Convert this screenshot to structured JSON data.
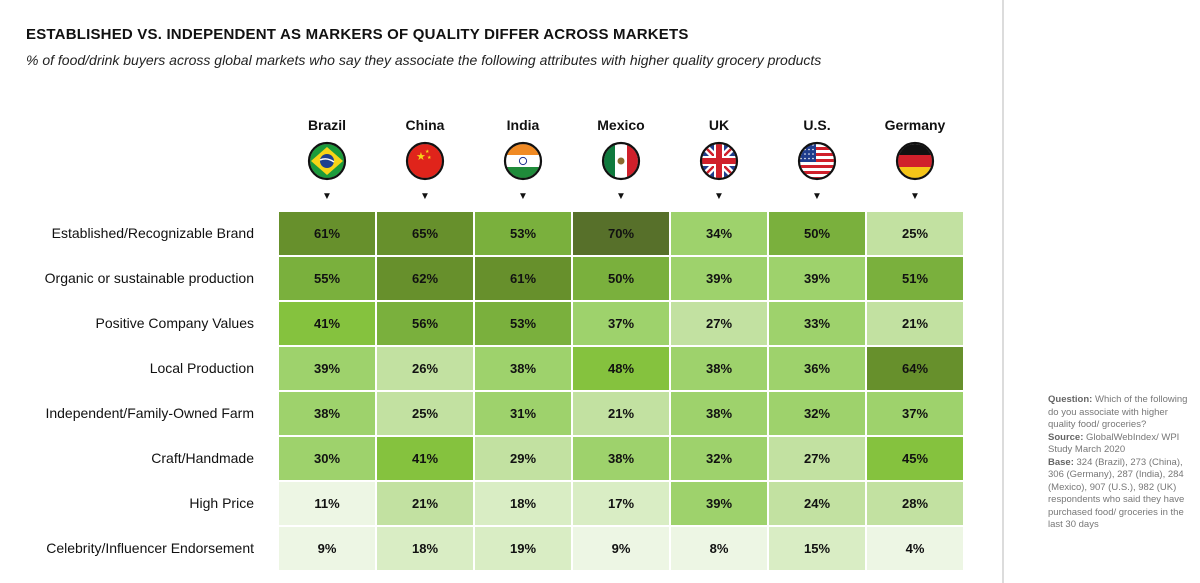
{
  "title": "ESTABLISHED VS. INDEPENDENT AS MARKERS OF QUALITY DIFFER ACROSS MARKETS",
  "subtitle": "% of food/drink buyers across global markets who say they associate the following attributes with higher quality grocery products",
  "chart_data": {
    "type": "heatmap",
    "title": "ESTABLISHED VS. INDEPENDENT AS MARKERS OF QUALITY DIFFER ACROSS MARKETS",
    "subtitle": "% of food/drink buyers across global markets who say they associate the following attributes with higher quality grocery products",
    "columns": [
      "Brazil",
      "China",
      "India",
      "Mexico",
      "UK",
      "U.S.",
      "Germany"
    ],
    "flag_icons": [
      "brazil-flag-icon",
      "china-flag-icon",
      "india-flag-icon",
      "mexico-flag-icon",
      "uk-flag-icon",
      "us-flag-icon",
      "germany-flag-icon"
    ],
    "rows": [
      "Established/Recognizable Brand",
      "Organic or sustainable production",
      "Positive Company Values",
      "Local Production",
      "Independent/Family-Owned Farm",
      "Craft/Handmade",
      "High Price",
      "Celebrity/Influencer Endorsement"
    ],
    "values": [
      [
        61,
        65,
        53,
        70,
        34,
        50,
        25
      ],
      [
        55,
        62,
        61,
        50,
        39,
        39,
        51
      ],
      [
        41,
        56,
        53,
        37,
        27,
        33,
        21
      ],
      [
        39,
        26,
        38,
        48,
        38,
        36,
        64
      ],
      [
        38,
        25,
        31,
        21,
        38,
        32,
        37
      ],
      [
        30,
        41,
        29,
        38,
        32,
        27,
        45
      ],
      [
        11,
        21,
        18,
        17,
        39,
        24,
        28
      ],
      [
        9,
        18,
        19,
        9,
        8,
        15,
        4
      ]
    ],
    "value_suffix": "%",
    "colors": {
      "darkest": "#57702a",
      "dark": "#67902c",
      "medium": "#7ab03d",
      "bright": "#85c23e",
      "light": "#9ed26c",
      "pale": "#c2e1a1",
      "palest": "#e3f2d5"
    }
  },
  "note": {
    "question_label": "Question:",
    "question": "Which of the following do you associate with higher quality food/ groceries?",
    "source_label": "Source:",
    "source": "GlobalWebIndex/ WPI Study March 2020",
    "base_label": "Base:",
    "base": "324 (Brazil), 273 (China), 306 (Germany), 287 (India), 284 (Mexico), 907 (U.S.), 982 (UK) respondents who said they have purchased food/ groceries in the last 30 days"
  }
}
